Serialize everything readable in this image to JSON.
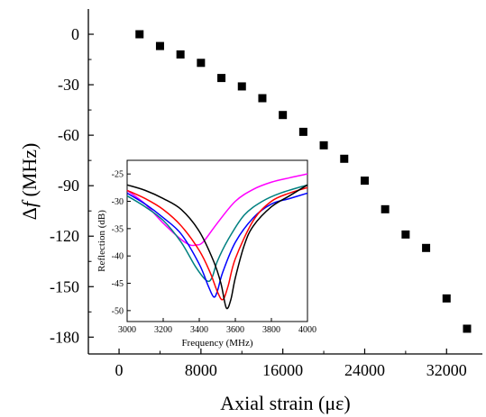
{
  "chart_data": [
    {
      "type": "scatter",
      "title": "",
      "xlabel": "Axial strain (με)",
      "ylabel_prefix": "Δ",
      "ylabel_var": "f",
      "ylabel_unit": " (MHz)",
      "xlim": [
        -3000,
        35500
      ],
      "ylim": [
        -190,
        15
      ],
      "xticks": [
        0,
        8000,
        16000,
        24000,
        32000
      ],
      "yticks": [
        0,
        -30,
        -60,
        -90,
        -120,
        -150,
        -180
      ],
      "grid": false,
      "marker": "square",
      "marker_color": "#000000",
      "series": [
        {
          "x": [
            2000,
            4000,
            6000,
            8000,
            10000,
            12000,
            14000,
            16000,
            18000,
            20000,
            22000,
            24000,
            26000,
            28000,
            30000,
            32000,
            34000
          ],
          "y": [
            0,
            -7,
            -12,
            -17,
            -26,
            -31,
            -38,
            -48,
            -58,
            -66,
            -74,
            -87,
            -104,
            -119,
            -127,
            -157,
            -175
          ]
        }
      ]
    },
    {
      "type": "line",
      "title": "",
      "xlabel": "Frequency (MHz)",
      "ylabel": "Reflection (dB)",
      "xlim": [
        3000,
        4000
      ],
      "ylim": [
        -52,
        -22.5
      ],
      "xticks": [
        3000,
        3200,
        3400,
        3600,
        3800,
        4000
      ],
      "yticks": [
        -25,
        -30,
        -35,
        -40,
        -45,
        -50
      ],
      "grid": false,
      "series": [
        {
          "color": "#ff00ff",
          "x": [
            3000,
            3100,
            3200,
            3300,
            3350,
            3380,
            3420,
            3500,
            3600,
            3700,
            3800,
            3900,
            4000
          ],
          "y": [
            -28,
            -30.5,
            -34,
            -37,
            -38,
            -38,
            -37.5,
            -34,
            -30,
            -27.8,
            -26.5,
            -25.7,
            -25
          ]
        },
        {
          "color": "#008080",
          "x": [
            3000,
            3100,
            3200,
            3300,
            3380,
            3440,
            3470,
            3500,
            3560,
            3650,
            3750,
            3850,
            4000
          ],
          "y": [
            -29,
            -31,
            -33.5,
            -37.5,
            -42,
            -44.5,
            -44,
            -41,
            -37,
            -32.5,
            -30,
            -28.5,
            -27
          ]
        },
        {
          "color": "#0000ff",
          "x": [
            3000,
            3100,
            3200,
            3300,
            3400,
            3450,
            3480,
            3500,
            3530,
            3600,
            3700,
            3800,
            3900,
            4000
          ],
          "y": [
            -28.5,
            -30.5,
            -33,
            -36,
            -41.5,
            -45.5,
            -47.5,
            -46.5,
            -43,
            -37.5,
            -33,
            -30.5,
            -29.5,
            -28.5
          ]
        },
        {
          "color": "#ff0000",
          "x": [
            3000,
            3100,
            3200,
            3300,
            3400,
            3460,
            3500,
            3530,
            3560,
            3600,
            3700,
            3800,
            3900,
            4000
          ],
          "y": [
            -28,
            -29.5,
            -31.5,
            -34.5,
            -39,
            -43,
            -46.5,
            -48,
            -45.5,
            -40.5,
            -33.5,
            -30,
            -28.5,
            -27.5
          ]
        },
        {
          "color": "#000000",
          "x": [
            3000,
            3100,
            3200,
            3300,
            3400,
            3480,
            3520,
            3550,
            3575,
            3600,
            3650,
            3700,
            3800,
            3900,
            4000
          ],
          "y": [
            -27,
            -28,
            -29.5,
            -31.5,
            -35.5,
            -41,
            -45,
            -49.5,
            -48,
            -44,
            -38,
            -34.5,
            -31,
            -29,
            -27
          ]
        }
      ]
    }
  ]
}
